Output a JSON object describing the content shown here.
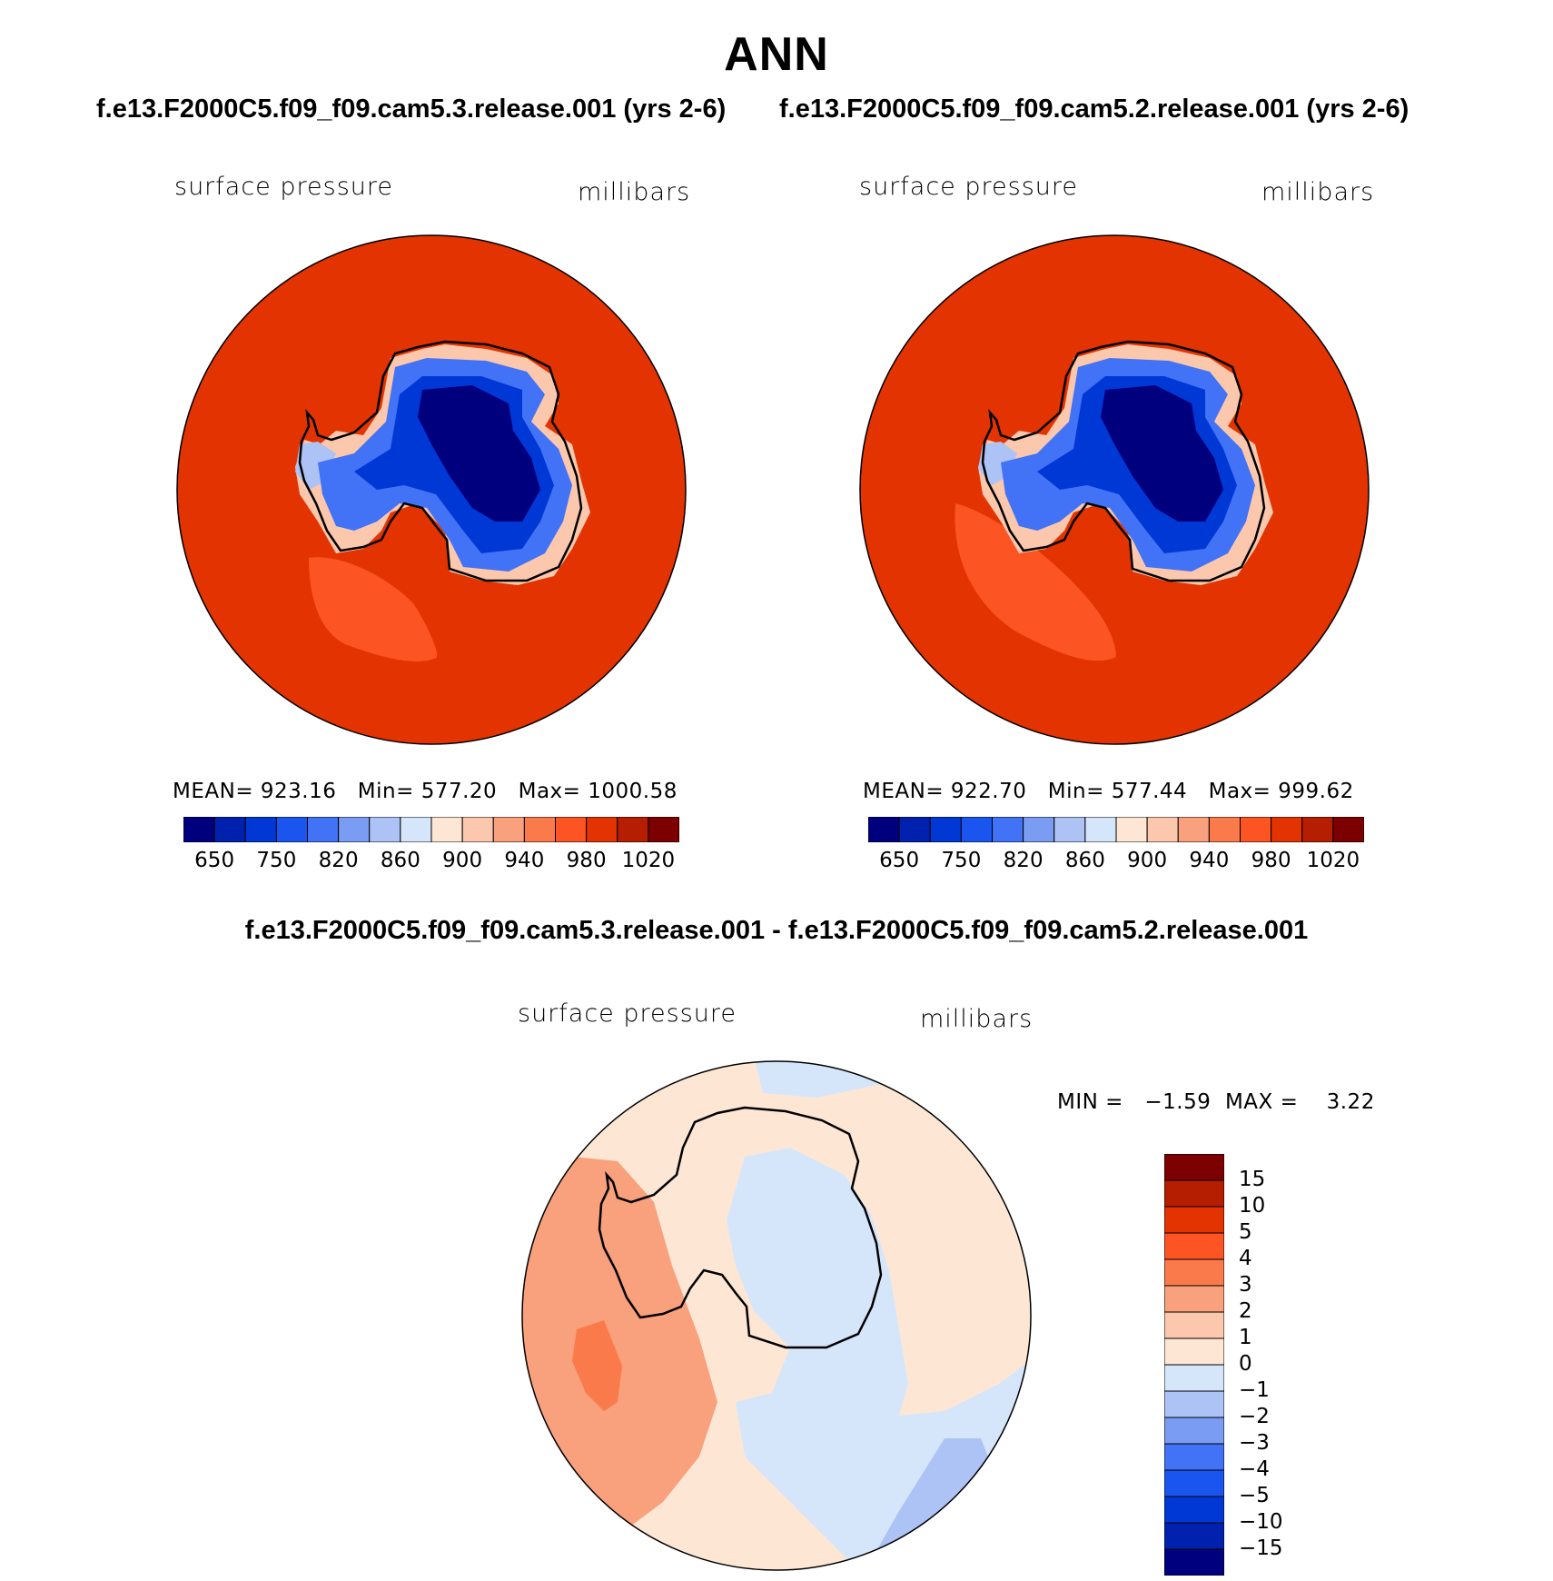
{
  "title": "ANN",
  "cases": {
    "left": "f.e13.F2000C5.f09_f09.cam5.3.release.001 (yrs 2-6)",
    "right": "f.e13.F2000C5.f09_f09.cam5.2.release.001 (yrs 2-6)"
  },
  "diff_title": "f.e13.F2000C5.f09_f09.cam5.3.release.001 - f.e13.F2000C5.f09_f09.cam5.2.release.001",
  "panels": [
    {
      "variable": "surface pressure",
      "units": "millibars",
      "stats": "MEAN= 923.16   Min= 577.20   Max= 1000.58",
      "mean": 923.16,
      "min": 577.2,
      "max": 1000.58
    },
    {
      "variable": "surface pressure",
      "units": "millibars",
      "stats": "MEAN= 922.70   Min= 577.44   Max= 999.62",
      "mean": 922.7,
      "min": 577.44,
      "max": 999.62
    }
  ],
  "diff_panel": {
    "variable": "surface pressure",
    "units": "millibars",
    "stats": "MIN =   −1.59  MAX =    3.22",
    "min": -1.59,
    "max": 3.22
  },
  "colorbar_field": {
    "colors": [
      "#00007f",
      "#0021ad",
      "#0038d6",
      "#1a55f0",
      "#4272f5",
      "#7a9cf2",
      "#adc3f5",
      "#d6e6fa",
      "#fde7d4",
      "#fbc8ad",
      "#f9a07d",
      "#fb7a4b",
      "#fc5423",
      "#e23300",
      "#b51e00",
      "#7d0000"
    ],
    "tick_labels": [
      "650",
      "750",
      "820",
      "860",
      "900",
      "940",
      "980",
      "1020"
    ]
  },
  "colorbar_diff": {
    "colors": [
      "#00007f",
      "#0021ad",
      "#0038d6",
      "#1a55f0",
      "#4272f5",
      "#7a9cf2",
      "#adc3f5",
      "#d6e6fa",
      "#fde7d4",
      "#fbc8ad",
      "#f9a07d",
      "#fb7a4b",
      "#fc5423",
      "#e23300",
      "#b51e00",
      "#7d0000"
    ],
    "tick_labels": [
      "15",
      "10",
      "5",
      "4",
      "3",
      "2",
      "1",
      "0",
      "−1",
      "−2",
      "−3",
      "−4",
      "−5",
      "−10",
      "−15"
    ]
  },
  "map_colors": {
    "ocean_field": "#e23300",
    "ocean_low": "#fc5423",
    "ice_edge": "#fbc8ad",
    "ice_high": "#4272f5",
    "ice_mid": "#0038d6",
    "ice_core": "#00007f",
    "peninsula": "#adc3f5",
    "diff_base": "#fde7d4",
    "diff_neg1": "#d6e6fa",
    "diff_neg2": "#adc3f5",
    "diff_pos2": "#f9a07d",
    "diff_pos3": "#fb7a4b"
  }
}
